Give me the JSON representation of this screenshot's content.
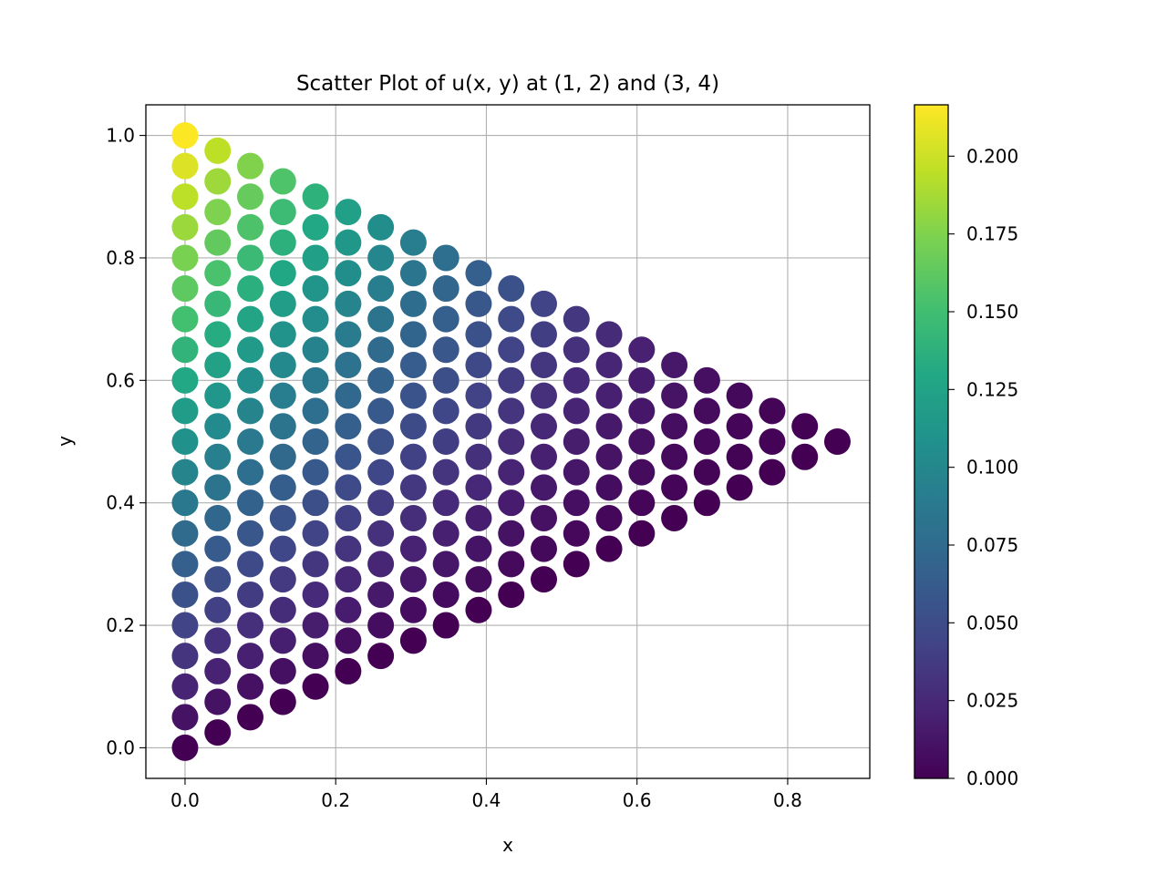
{
  "chart_data": {
    "type": "scatter",
    "title": "Scatter Plot of u(x, y) at (1, 2) and (3, 4)",
    "xlabel": "x",
    "ylabel": "y",
    "xlim": [
      -0.052,
      0.909
    ],
    "ylim": [
      -0.05,
      1.05
    ],
    "x_ticks": [
      "0.0",
      "0.2",
      "0.4",
      "0.6",
      "0.8"
    ],
    "y_ticks": [
      "0.0",
      "0.2",
      "0.4",
      "0.6",
      "0.8",
      "1.0"
    ],
    "grid": true,
    "colormap": "viridis",
    "colorbar": {
      "range": [
        0.0,
        0.2165
      ],
      "ticks": [
        "0.000",
        "0.025",
        "0.050",
        "0.075",
        "0.100",
        "0.125",
        "0.150",
        "0.175",
        "0.200"
      ]
    },
    "points": {
      "description_of_grid": "u = i/20, v = j/20 for 0 <= j <= i <= 20",
      "x_formula": "x = (sqrt(3)/2) * v",
      "y_formula": "y = u - v/2",
      "value_formula": "u_value = x * (1 - y) * (y - x/sqrt(3)) * 0.75 approx"
    }
  }
}
